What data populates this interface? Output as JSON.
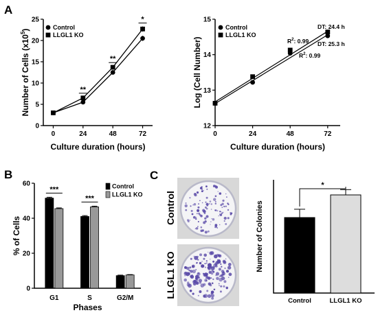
{
  "panel_labels": [
    "A",
    "B",
    "C"
  ],
  "chart_data": [
    {
      "id": "A1",
      "type": "line",
      "xlabel": "Culture duration (hours)",
      "ylabel": "Number of Cells (x10",
      "ylabel_sup": "5",
      "ylabel_tail": ")",
      "x": [
        0,
        24,
        48,
        72
      ],
      "xticks": [
        "0",
        "24",
        "48",
        "72"
      ],
      "yticks": [
        "0",
        "5",
        "10",
        "15",
        "20",
        "25"
      ],
      "xlim": [
        -8,
        80
      ],
      "ylim": [
        0,
        25
      ],
      "series": [
        {
          "name": "Control",
          "marker": "circle",
          "values": [
            3.0,
            5.5,
            12.5,
            20.5
          ],
          "errors": [
            0.1,
            0.3,
            0.3,
            0.6
          ]
        },
        {
          "name": "LLGL1 KO",
          "marker": "square",
          "values": [
            3.0,
            6.5,
            13.7,
            22.7
          ],
          "errors": [
            0.1,
            0.3,
            0.3,
            0.6
          ]
        }
      ],
      "significance": [
        {
          "x": 24,
          "label": "**"
        },
        {
          "x": 48,
          "label": "**"
        },
        {
          "x": 72,
          "label": "*"
        }
      ],
      "legend_position": "top-left"
    },
    {
      "id": "A2",
      "type": "line",
      "xlabel": "Culture duration (hours)",
      "ylabel": "Log (Cell Number)",
      "x": [
        0,
        24,
        48,
        72
      ],
      "xticks": [
        "0",
        "24",
        "48",
        "72"
      ],
      "yticks": [
        "12",
        "13",
        "14",
        "15"
      ],
      "xlim": [
        0,
        80
      ],
      "ylim": [
        12,
        15
      ],
      "series": [
        {
          "name": "Control",
          "marker": "circle",
          "values": [
            12.63,
            13.22,
            14.04,
            14.53
          ],
          "fit": [
            12.62,
            14.56
          ]
        },
        {
          "name": "LLGL1 KO",
          "marker": "square",
          "values": [
            12.63,
            13.38,
            14.13,
            14.64
          ],
          "fit": [
            12.67,
            14.66
          ]
        }
      ],
      "annotations": {
        "r2_label": "R",
        "r2_sup": "2",
        "r2_control": ": 0.99",
        "r2_ko": ": 0.99",
        "dt_ko": "DT: 24.4 h",
        "dt_control": "DT: 25.3 h"
      },
      "legend_position": "top-left"
    },
    {
      "id": "B",
      "type": "bar",
      "xlabel": "Phases",
      "ylabel": "% of Cells",
      "categories": [
        "G1",
        "S",
        "G2/M"
      ],
      "yticks": [
        "0",
        "20",
        "40",
        "60"
      ],
      "ylim": [
        0,
        60
      ],
      "series": [
        {
          "name": "Control",
          "color": "#000000",
          "values": [
            51.5,
            41.0,
            7.2
          ],
          "errors": [
            0.5,
            0.5,
            0.3
          ]
        },
        {
          "name": "LLGL1 KO",
          "color": "#999999",
          "values": [
            45.5,
            46.5,
            7.6
          ],
          "errors": [
            0.4,
            0.4,
            0.2
          ]
        }
      ],
      "significance": [
        {
          "category": "G1",
          "label": "***"
        },
        {
          "category": "S",
          "label": "***"
        }
      ],
      "legend_position": "top-right"
    },
    {
      "id": "C",
      "type": "bar",
      "ylabel": "Number of Colonies",
      "categories": [
        "Control",
        "LLGL1 KO"
      ],
      "values": [
        200,
        260
      ],
      "errors": [
        22,
        14
      ],
      "colors": [
        "#000000",
        "#dddddd"
      ],
      "ylim": [
        0,
        300
      ],
      "significance": [
        {
          "between": [
            "Control",
            "LLGL1 KO"
          ],
          "label": "*"
        }
      ]
    }
  ],
  "images": {
    "labels": [
      "Control",
      "LLGL1 KO"
    ],
    "stain_color": "#5a4aa8"
  }
}
